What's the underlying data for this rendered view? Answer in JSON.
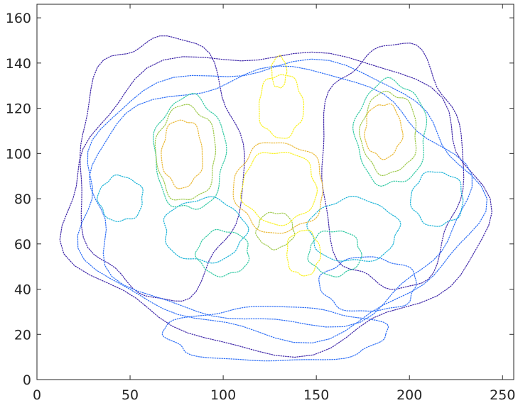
{
  "chart_data": {
    "type": "contour",
    "title": "",
    "xlabel": "",
    "ylabel": "",
    "xlim": [
      0,
      256
    ],
    "ylim": [
      0,
      166
    ],
    "grid": false,
    "x_ticks": [
      0,
      50,
      100,
      150,
      200,
      250
    ],
    "y_ticks": [
      0,
      20,
      40,
      60,
      80,
      100,
      120,
      140,
      160
    ],
    "colormap": [
      "#3e26a8",
      "#2e6ff6",
      "#19b3d7",
      "#30c9a2",
      "#9dc94a",
      "#eab936",
      "#f9f11e"
    ],
    "levels": [
      {
        "level": 1,
        "color": "#3e26a8",
        "ellipses": [
          [
            128,
            80,
            112,
            66
          ],
          [
            66,
            94,
            44,
            58
          ],
          [
            190,
            94,
            38,
            54
          ]
        ]
      },
      {
        "level": 2,
        "color": "#2e6ff6",
        "ellipses": [
          [
            128,
            80,
            106,
            60
          ],
          [
            128,
            80,
            100,
            56
          ],
          [
            128,
            20,
            60,
            12
          ],
          [
            178,
            42,
            26,
            12
          ]
        ]
      },
      {
        "level": 3,
        "color": "#19b3d7",
        "ellipses": [
          [
            90,
            66,
            22,
            14
          ],
          [
            170,
            66,
            24,
            14
          ],
          [
            45,
            80,
            12,
            10
          ],
          [
            215,
            80,
            14,
            12
          ]
        ]
      },
      {
        "level": 4,
        "color": "#30c9a2",
        "ellipses": [
          [
            82,
            100,
            19,
            25
          ],
          [
            190,
            109,
            19,
            23
          ],
          [
            100,
            56,
            14,
            10
          ],
          [
            160,
            56,
            14,
            10
          ]
        ]
      },
      {
        "level": 5,
        "color": "#9dc94a",
        "ellipses": [
          [
            80,
            100,
            16,
            21
          ],
          [
            189,
            109,
            15,
            18
          ],
          [
            128,
            66,
            10,
            8
          ]
        ]
      },
      {
        "level": 6,
        "color": "#eab936",
        "ellipses": [
          [
            130,
            85,
            24,
            20
          ],
          [
            78,
            100,
            11,
            15
          ],
          [
            186,
            110,
            10,
            12
          ]
        ]
      },
      {
        "level": 7,
        "color": "#f9f11e",
        "ellipses": [
          [
            130,
            85,
            20,
            16
          ],
          [
            131,
            121,
            12,
            14
          ],
          [
            143,
            56,
            9,
            10
          ],
          [
            130,
            136,
            4,
            7
          ]
        ]
      }
    ]
  }
}
